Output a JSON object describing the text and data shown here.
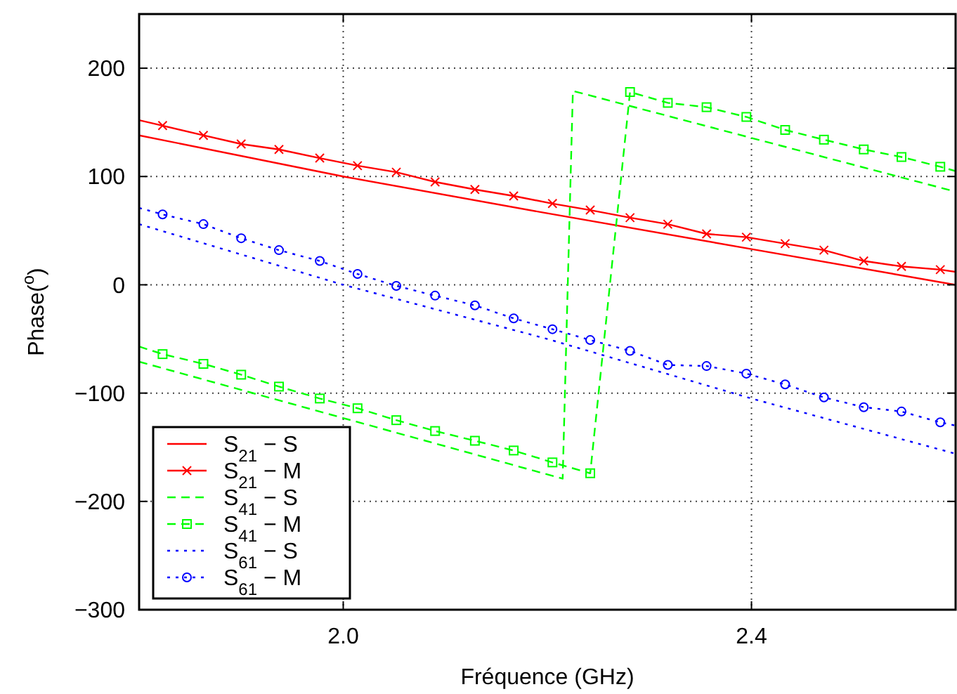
{
  "chart_data": {
    "type": "line",
    "xlabel": "Fréquence (GHz)",
    "ylabel": "Phase($^{o}$)",
    "xlim": [
      1.8,
      2.6
    ],
    "ylim": [
      -300,
      250
    ],
    "xticks": [
      {
        "value": 2.0,
        "label": "2.0"
      },
      {
        "value": 2.4,
        "label": "2.4"
      }
    ],
    "yticks": [
      {
        "value": -300,
        "label": "−300"
      },
      {
        "value": -200,
        "label": "−200"
      },
      {
        "value": -100,
        "label": "−100"
      },
      0,
      100,
      200
    ],
    "grid": true,
    "legend": "bottom left",
    "series": [
      {
        "name": "S$_{21}$ − S",
        "color": "#ff0000",
        "line_style": "solid",
        "marker": "none",
        "x": [
          1.8,
          2.0,
          2.2,
          2.4,
          2.6
        ],
        "values": [
          138,
          100,
          66,
          33,
          0
        ]
      },
      {
        "name": "S$_{21}$ − M",
        "color": "#ff0000",
        "line_style": "solid",
        "marker": "cross",
        "x": [
          1.8,
          1.823,
          1.863,
          1.9,
          1.937,
          1.977,
          2.014,
          2.052,
          2.09,
          2.129,
          2.167,
          2.205,
          2.242,
          2.281,
          2.318,
          2.356,
          2.395,
          2.433,
          2.471,
          2.51,
          2.547,
          2.585,
          2.6
        ],
        "values": [
          152,
          147,
          138,
          130,
          125,
          117,
          110,
          104,
          95,
          88,
          82,
          75,
          69,
          62,
          56,
          47,
          44,
          38,
          32,
          22,
          17,
          14,
          12
        ]
      },
      {
        "name": "S$_{41}$ − S",
        "color": "#00ff00",
        "line_style": "dashed",
        "marker": "none",
        "x": [
          1.8,
          2.215,
          2.225,
          2.6
        ],
        "values": [
          -71,
          -179,
          179,
          86
        ]
      },
      {
        "name": "S$_{41}$ − M",
        "color": "#00ff00",
        "line_style": "dashed",
        "marker": "square",
        "x": [
          1.8,
          1.823,
          1.863,
          1.9,
          1.937,
          1.977,
          2.014,
          2.052,
          2.09,
          2.129,
          2.167,
          2.205,
          2.242,
          2.281,
          2.318,
          2.356,
          2.395,
          2.433,
          2.471,
          2.51,
          2.547,
          2.585,
          2.6
        ],
        "values": [
          -57,
          -64,
          -73,
          -83,
          -94,
          -105,
          -114,
          -125,
          -135,
          -144,
          -153,
          -164,
          -174,
          178,
          168,
          164,
          155,
          143,
          134,
          125,
          118,
          109,
          105
        ]
      },
      {
        "name": "S$_{61}$ − S",
        "color": "#0000ff",
        "line_style": "dotted",
        "marker": "none",
        "x": [
          1.8,
          2.0,
          2.2,
          2.4,
          2.6
        ],
        "values": [
          56,
          0,
          -50,
          -105,
          -156
        ]
      },
      {
        "name": "S$_{61}$ − M",
        "color": "#0000ff",
        "line_style": "dotted",
        "marker": "circle",
        "x": [
          1.8,
          1.823,
          1.863,
          1.9,
          1.937,
          1.977,
          2.014,
          2.052,
          2.09,
          2.129,
          2.167,
          2.205,
          2.242,
          2.281,
          2.318,
          2.356,
          2.395,
          2.433,
          2.471,
          2.51,
          2.547,
          2.585,
          2.6
        ],
        "values": [
          71,
          65,
          56,
          43,
          32,
          22,
          10,
          -1,
          -10,
          -19,
          -31,
          -41,
          -51,
          -61,
          -74,
          -75,
          -82,
          -92,
          -104,
          -113,
          -117,
          -127,
          -130
        ]
      }
    ]
  }
}
